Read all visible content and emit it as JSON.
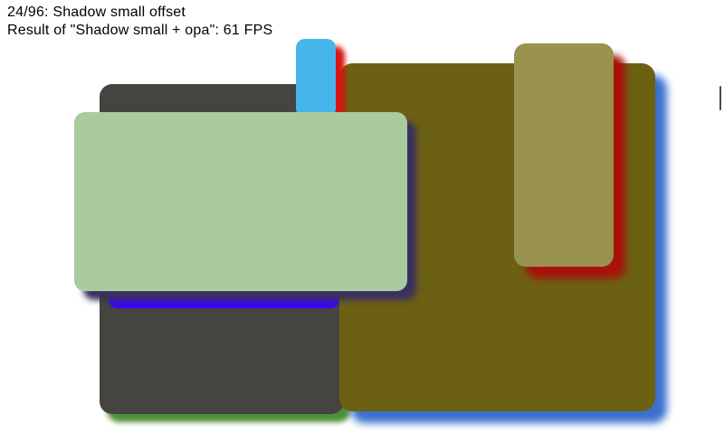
{
  "header": {
    "progress_label": "24/96: Shadow small offset",
    "result_label": "Result of \"Shadow small + opa\": 61 FPS",
    "test_index": "24/96",
    "current_test_name": "Shadow small offset",
    "previous_test_name": "Shadow small + opa",
    "fps": 61
  },
  "canvas": {
    "background_color": "#ffffff",
    "shapes": [
      {
        "name": "dark-gray-card",
        "fill": "#454440",
        "shadow_color": "#4f8f37",
        "shadow": "8px 9px 6px #4f8f37"
      },
      {
        "name": "bright-blue-strip",
        "fill": "#3a08f0",
        "shadow_color": "none",
        "shadow": "none"
      },
      {
        "name": "olive-panel",
        "fill": "#6c6013",
        "shadow_color": "#3a70ce",
        "shadow": "13px 13px 9px #3a70ce"
      },
      {
        "name": "sky-blue-tab",
        "fill": "#46b6ea",
        "shadow_color": "#d81410",
        "shadow": "10px 8px 6px #d81410"
      },
      {
        "name": "light-olive-card",
        "fill": "#99934f",
        "shadow_color": "#a8120b",
        "shadow": "13px 13px 8px #a8120b"
      },
      {
        "name": "light-green-card",
        "fill": "#a9cb9e",
        "shadow_color": "#3b3060",
        "shadow": "10px 10px 7px #3b3060"
      }
    ],
    "scrollbar_color": "#4a4a46"
  }
}
